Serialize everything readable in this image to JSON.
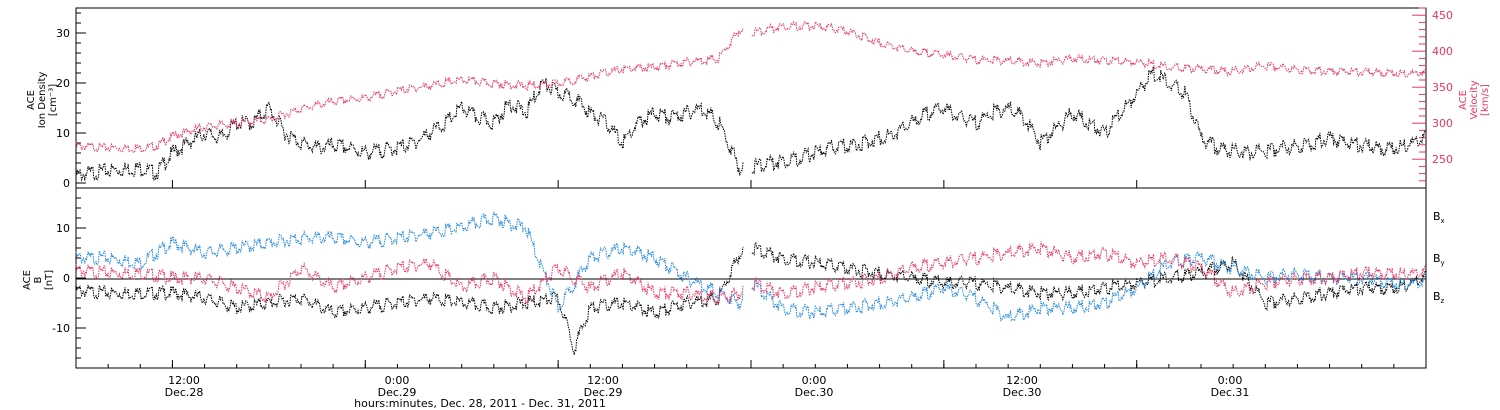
{
  "colors": {
    "black": "#000000",
    "red": "#e8355f",
    "blue": "#1f86e0"
  },
  "chart_data": [
    {
      "type": "scatter",
      "panel": "top",
      "ylabel_lines": [
        "ACE",
        "Ion Density",
        "[cm⁻³]"
      ],
      "ylabel_right_lines": [
        "ACE",
        "Velocity",
        "[km/s]"
      ],
      "xlim": [
        0,
        84
      ],
      "ylim": [
        -1,
        35
      ],
      "ylim_right": [
        210,
        460
      ],
      "y_ticks": [
        "0",
        "10",
        "20",
        "30"
      ],
      "y_right_ticks": [
        "250",
        "300",
        "350",
        "400",
        "450"
      ],
      "gaps": [
        [
          41.5,
          42.0
        ]
      ],
      "series": [
        {
          "role": "density",
          "color": "#000000",
          "axis": "left",
          "x": [
            0,
            2,
            4,
            5,
            6,
            7,
            8,
            9,
            10,
            11,
            12,
            13,
            14,
            15,
            16,
            17,
            18,
            19,
            20,
            21,
            22,
            23,
            24,
            25,
            26,
            27,
            28,
            29,
            30,
            31,
            32,
            33,
            34,
            35,
            36,
            37,
            38,
            39,
            40,
            41.3,
            42.0,
            43,
            44,
            45,
            46,
            47,
            48,
            49,
            50,
            51,
            52,
            53,
            54,
            55,
            56,
            57,
            58,
            59,
            60,
            61,
            62,
            63,
            64,
            65,
            66,
            67,
            68,
            69,
            70,
            71,
            72,
            73,
            74,
            75,
            76,
            77,
            78,
            79,
            80,
            81,
            82,
            83,
            84
          ],
          "y": [
            1.5,
            2.5,
            3.0,
            2.0,
            6.0,
            8.0,
            10.0,
            9.0,
            12.0,
            12.0,
            15.0,
            10.0,
            8.0,
            7.0,
            7.5,
            7.0,
            6.0,
            6.5,
            7.0,
            8.0,
            10.0,
            12.0,
            15.0,
            13.0,
            12.0,
            16.0,
            14.0,
            20.0,
            18.0,
            17.0,
            14.0,
            12.0,
            8.0,
            12.0,
            14.0,
            13.0,
            14.0,
            15.0,
            12.0,
            3.0,
            3.0,
            4.0,
            4.5,
            5.0,
            6.0,
            7.0,
            7.5,
            8.0,
            9.0,
            10.0,
            12.0,
            14.0,
            15.0,
            13.0,
            12.0,
            14.0,
            15.0,
            13.0,
            8.0,
            11.0,
            14.0,
            12.0,
            10.0,
            14.0,
            18.0,
            22.0,
            20.0,
            18.0,
            9.0,
            7.0,
            6.5,
            6.0,
            6.5,
            7.0,
            7.5,
            8.0,
            9.0,
            8.0,
            7.5,
            7.0,
            7.0,
            8.0,
            9.0
          ]
        },
        {
          "role": "velocity",
          "color": "#e8355f",
          "axis": "right",
          "x": [
            0,
            2,
            4,
            5,
            6,
            8,
            10,
            12,
            14,
            16,
            18,
            20,
            22,
            24,
            26,
            28,
            30,
            32,
            34,
            36,
            38,
            40,
            41.3,
            42.0,
            44,
            46,
            48,
            50,
            52,
            54,
            56,
            58,
            60,
            62,
            64,
            66,
            68,
            70,
            72,
            74,
            76,
            78,
            80,
            82,
            84
          ],
          "y": [
            268,
            266,
            265,
            268,
            282,
            295,
            300,
            305,
            320,
            330,
            335,
            345,
            352,
            360,
            355,
            352,
            355,
            365,
            375,
            378,
            385,
            390,
            430,
            425,
            435,
            435,
            428,
            412,
            400,
            395,
            388,
            387,
            383,
            390,
            387,
            385,
            378,
            375,
            372,
            380,
            375,
            372,
            371,
            370,
            369
          ]
        }
      ]
    },
    {
      "type": "scatter",
      "panel": "bottom",
      "ylabel_lines": [
        "ACE",
        "B",
        "[nT]"
      ],
      "xlim": [
        0,
        84
      ],
      "ylim": [
        -18,
        18
      ],
      "y_ticks": [
        "-10",
        "0",
        "10"
      ],
      "legend_position": "right",
      "gaps": [
        [
          41.5,
          42.0
        ]
      ],
      "series": [
        {
          "name": "Bx",
          "color": "#000000",
          "x": [
            0,
            2,
            4,
            6,
            8,
            10,
            12,
            14,
            16,
            18,
            20,
            22,
            24,
            26,
            28,
            30,
            31,
            32,
            34,
            36,
            38,
            40,
            41.3,
            42.0,
            44,
            46,
            48,
            50,
            52,
            54,
            56,
            58,
            60,
            62,
            64,
            66,
            68,
            70,
            72,
            74,
            76,
            78,
            80,
            82,
            84
          ],
          "y": [
            -2.5,
            -3,
            -3,
            -3,
            -4,
            -6,
            -5,
            -4,
            -7,
            -6,
            -5,
            -4,
            -5,
            -6,
            -5,
            -4,
            -14,
            -6,
            -5,
            -7,
            -5,
            -4,
            5,
            6,
            4,
            3,
            2,
            1,
            0,
            -1,
            -1,
            -2,
            -3,
            -3,
            -2,
            -1,
            0,
            1,
            3,
            -5,
            -4,
            -3,
            -2,
            -2,
            0
          ]
        },
        {
          "name": "By",
          "color": "#1f86e0",
          "x": [
            0,
            2,
            4,
            6,
            8,
            10,
            12,
            14,
            16,
            18,
            20,
            22,
            24,
            26,
            28,
            30,
            32,
            34,
            36,
            38,
            40,
            41.3,
            42.0,
            44,
            46,
            48,
            50,
            52,
            54,
            56,
            58,
            60,
            62,
            64,
            66,
            68,
            70,
            72,
            74,
            76,
            78,
            80,
            82,
            84
          ],
          "y": [
            4,
            4,
            3,
            7,
            5,
            6,
            7,
            8,
            8,
            7,
            8,
            9,
            10,
            12,
            10,
            -6,
            4,
            6,
            4,
            0,
            -3,
            -5,
            -1,
            -6,
            -7,
            -6,
            -5,
            -4,
            -2,
            -4,
            -8,
            -6,
            -6,
            -5,
            -2,
            3,
            4,
            2,
            0,
            1,
            0,
            0,
            -1,
            -1
          ]
        },
        {
          "name": "Bz",
          "color": "#e8355f",
          "x": [
            0,
            2,
            4,
            6,
            8,
            10,
            12,
            14,
            16,
            18,
            20,
            22,
            24,
            26,
            28,
            30,
            32,
            34,
            36,
            38,
            40,
            41.3,
            42.0,
            44,
            46,
            48,
            50,
            52,
            54,
            56,
            58,
            60,
            62,
            64,
            66,
            68,
            70,
            72,
            74,
            76,
            78,
            80,
            82,
            84
          ],
          "y": [
            1.5,
            1,
            1,
            0,
            0,
            -2,
            -4,
            2,
            -2,
            0,
            2,
            3,
            -2,
            0,
            -4,
            2,
            -2,
            1,
            -3,
            -3,
            -4,
            -3,
            -1,
            -3,
            -2,
            -1,
            0,
            2,
            3,
            4,
            5,
            6,
            4,
            5,
            3,
            4,
            2,
            -3,
            -1,
            0,
            0,
            1,
            1,
            1
          ]
        }
      ]
    }
  ],
  "x_axis": {
    "ticks": [
      {
        "time": "12:00",
        "date": "Dec.28"
      },
      {
        "time": "0:00",
        "date": "Dec.29"
      },
      {
        "time": "12:00",
        "date": "Dec.29"
      },
      {
        "time": "0:00",
        "date": "Dec.30"
      },
      {
        "time": "12:00",
        "date": "Dec.30"
      },
      {
        "time": "0:00",
        "date": "Dec.31"
      }
    ],
    "tick_hours": [
      6,
      18,
      30,
      42,
      54,
      66
    ],
    "xlabel": "hours:minutes, Dec. 28, 2011 - Dec. 31, 2011"
  },
  "legend": {
    "entries": [
      {
        "symbol": "B",
        "sub": "x",
        "color": "#000000"
      },
      {
        "symbol": "B",
        "sub": "y",
        "color": "#1f86e0"
      },
      {
        "symbol": "B",
        "sub": "z",
        "color": "#e8355f"
      }
    ]
  }
}
